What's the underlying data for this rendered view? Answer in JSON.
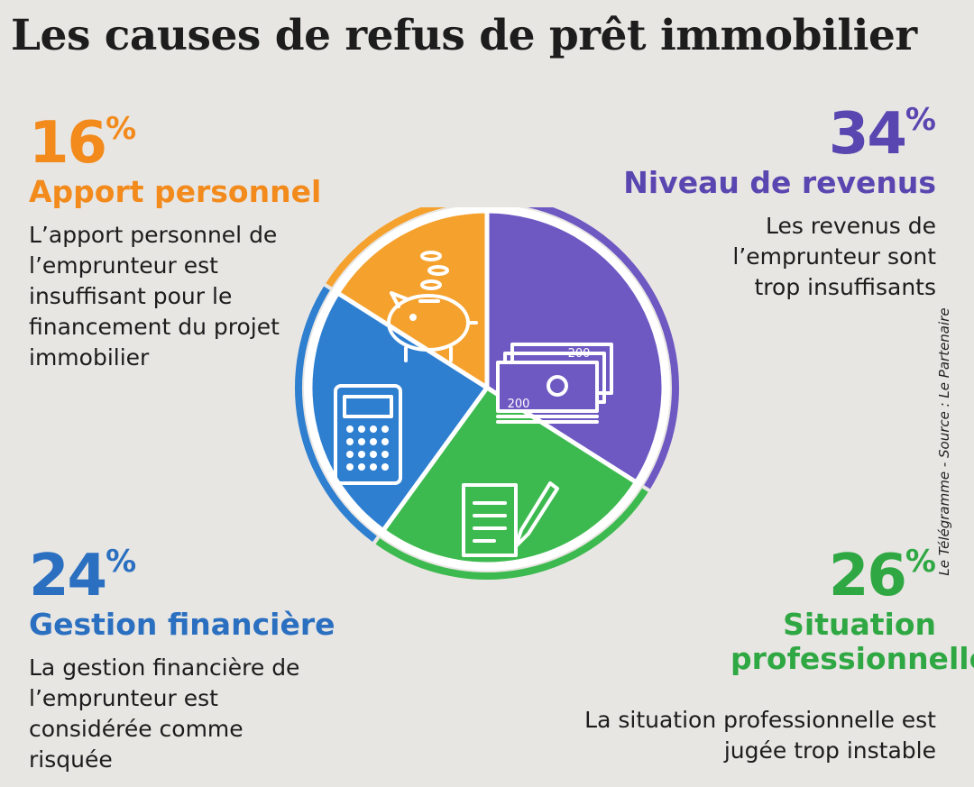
{
  "title": "Les causes de refus de prêt immobilier",
  "source": "Le Télégramme - Source : Le Partenaire",
  "colors": {
    "apport": "#f5a12e",
    "revenus": "#6e58c2",
    "situation": "#3dba4f",
    "gestion": "#2e7fd0"
  },
  "blocks": {
    "apport": {
      "value": "16",
      "sign": "%",
      "heading": "Apport personnel",
      "description": "L’apport personnel de l’emprunteur est insuffisant pour le financement du projet immobilier"
    },
    "revenus": {
      "value": "34",
      "sign": "%",
      "heading": "Niveau de revenus",
      "description": "Les revenus de l’emprunteur sont trop insuffisants"
    },
    "gestion": {
      "value": "24",
      "sign": "%",
      "heading": "Gestion financière",
      "description": "La gestion financière de l’emprunteur est considérée comme risquée"
    },
    "situation": {
      "value": "26",
      "sign": "%",
      "heading": "Situation professionnelle",
      "description": "La situation professionnelle est jugée trop instable"
    }
  },
  "pie_icons": {
    "apport": "piggy-bank-icon",
    "revenus": "banknotes-icon",
    "situation": "contract-pen-icon",
    "gestion": "calculator-icon"
  },
  "banknote_labels": [
    "200",
    "200"
  ],
  "chart_data": {
    "type": "pie",
    "title": "Les causes de refus de prêt immobilier",
    "unit": "%",
    "slices": [
      {
        "label": "Niveau de revenus",
        "value": 34,
        "color": "#6e58c2"
      },
      {
        "label": "Situation professionnelle",
        "value": 26,
        "color": "#3dba4f"
      },
      {
        "label": "Gestion financière",
        "value": 24,
        "color": "#2e7fd0"
      },
      {
        "label": "Apport personnel",
        "value": 16,
        "color": "#f5a12e"
      }
    ]
  }
}
